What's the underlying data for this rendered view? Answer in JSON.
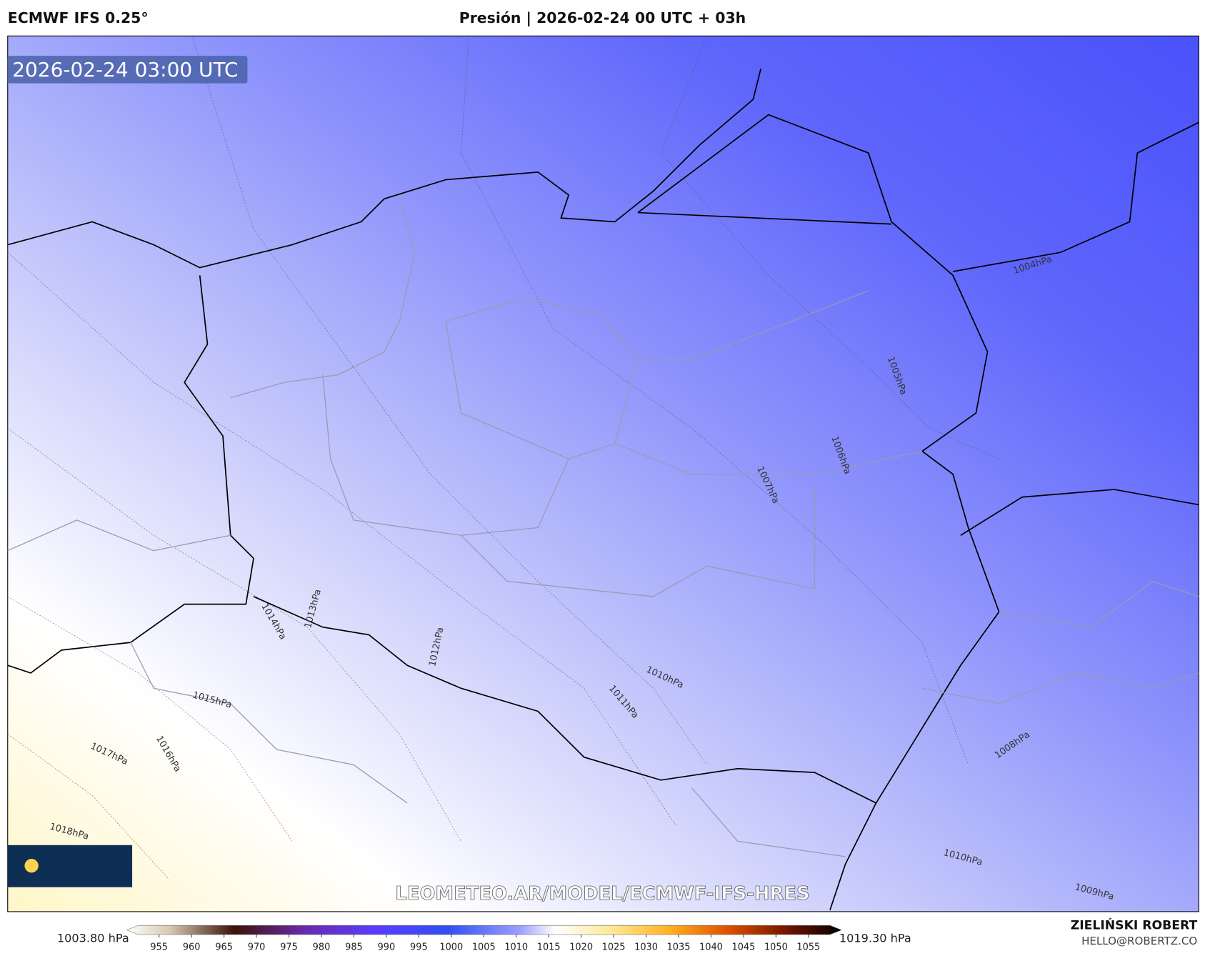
{
  "header": {
    "left_title": "ECMWF IFS 0.25°",
    "center_title": "Presión | 2026-02-24 00 UTC + 03h"
  },
  "map": {
    "timestamp": "2026-02-24 03:00 UTC",
    "watermark": "LEOMETEO.AR/MODEL/ECMWF-IFS-HRES",
    "contour_labels": [
      "1004hPa",
      "1005hPa",
      "1006hPa",
      "1007hPa",
      "1008hPa",
      "1009hPa",
      "1010hPa",
      "1010hPa",
      "1011hPa",
      "1012hPa",
      "1013hPa",
      "1014hPa",
      "1015hPa",
      "1016hPa",
      "1017hPa",
      "1018hPa"
    ]
  },
  "colorbar": {
    "min_label": "1003.80 hPa",
    "max_label": "1019.30 hPa",
    "ticks": [
      955,
      960,
      965,
      970,
      975,
      980,
      985,
      990,
      995,
      1000,
      1005,
      1010,
      1015,
      1020,
      1025,
      1030,
      1035,
      1040,
      1045,
      1050,
      1055
    ]
  },
  "credits": {
    "author": "ZIELIŃSKI ROBERT",
    "email": "HELLO@ROBERTZ.CO"
  }
}
